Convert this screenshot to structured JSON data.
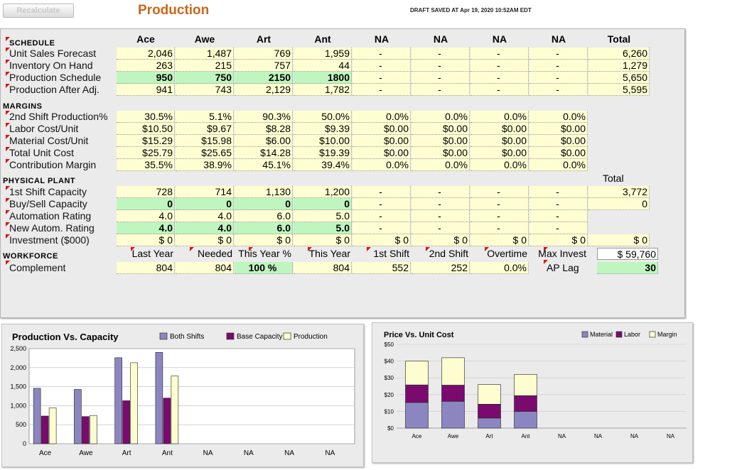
{
  "toolbar": {
    "recalc_label": "Recalculate",
    "title": "Production",
    "draft_status": "DRAFT SAVED AT Apr 19, 2020 10:52AM EDT"
  },
  "columns": [
    "Ace",
    "Awe",
    "Art",
    "Ant",
    "NA",
    "NA",
    "NA",
    "NA",
    "Total"
  ],
  "sections": {
    "schedule": "SCHEDULE",
    "margins": "MARGINS",
    "plant": "PHYSICAL PLANT",
    "workforce": "WORKFORCE"
  },
  "schedule": {
    "rows": [
      {
        "label": "Unit Sales Forecast",
        "values": [
          "2,046",
          "1,487",
          "769",
          "1,959",
          "-",
          "-",
          "-",
          "-",
          "6,260"
        ]
      },
      {
        "label": "Inventory On Hand",
        "values": [
          "263",
          "215",
          "757",
          "44",
          "-",
          "-",
          "-",
          "-",
          "1,279"
        ]
      },
      {
        "label": "Production Schedule",
        "values": [
          "950",
          "750",
          "2150",
          "1800",
          "-",
          "-",
          "-",
          "-",
          "5,650"
        ]
      },
      {
        "label": "Production After Adj.",
        "values": [
          "941",
          "743",
          "2,129",
          "1,782",
          "-",
          "-",
          "-",
          "-",
          "5,595"
        ]
      }
    ]
  },
  "margins": {
    "rows": [
      {
        "label": "2nd Shift Production%",
        "values": [
          "30.5%",
          "5.1%",
          "90.3%",
          "50.0%",
          "0.0%",
          "0.0%",
          "0.0%",
          "0.0%"
        ]
      },
      {
        "label": "Labor Cost/Unit",
        "values": [
          "$10.50",
          "$9.67",
          "$8.28",
          "$9.39",
          "$0.00",
          "$0.00",
          "$0.00",
          "$0.00"
        ]
      },
      {
        "label": "Material Cost/Unit",
        "values": [
          "$15.29",
          "$15.98",
          "$6.00",
          "$10.00",
          "$0.00",
          "$0.00",
          "$0.00",
          "$0.00"
        ]
      },
      {
        "label": "Total Unit Cost",
        "values": [
          "$25.79",
          "$25.65",
          "$14.28",
          "$19.39",
          "$0.00",
          "$0.00",
          "$0.00",
          "$0.00"
        ]
      },
      {
        "label": "Contribution Margin",
        "values": [
          "35.5%",
          "38.9%",
          "45.1%",
          "39.4%",
          "0.0%",
          "0.0%",
          "0.0%",
          "0.0%"
        ]
      }
    ]
  },
  "plant": {
    "total_header": "Total",
    "rows": [
      {
        "label": "1st Shift Capacity",
        "values": [
          "728",
          "714",
          "1,130",
          "1,200",
          "-",
          "-",
          "-",
          "-",
          "3,772"
        ]
      },
      {
        "label": "Buy/Sell Capacity",
        "values": [
          "0",
          "0",
          "0",
          "0",
          "-",
          "-",
          "-",
          "-",
          "0"
        ]
      },
      {
        "label": "Automation Rating",
        "values": [
          "4.0",
          "4.0",
          "6.0",
          "5.0",
          "-",
          "-",
          "-",
          "-"
        ]
      },
      {
        "label": "New Autom. Rating",
        "values": [
          "4.0",
          "4.0",
          "6.0",
          "5.0",
          "-",
          "-",
          "-",
          "-"
        ]
      },
      {
        "label": "Investment ($000)",
        "values": [
          "$ 0",
          "$ 0",
          "$ 0",
          "$ 0",
          "$ 0",
          "$ 0",
          "$ 0",
          "$ 0",
          "$ 0"
        ]
      }
    ]
  },
  "workforce": {
    "headers": [
      "Last Year",
      "Needed",
      "This Year %",
      "This Year",
      "1st Shift",
      "2nd Shift",
      "Overtime",
      "Max Invest"
    ],
    "max_invest_value": "$ 59,760",
    "label": "Complement",
    "values": [
      "804",
      "804",
      "100 %",
      "804",
      "552",
      "252",
      "0.0%"
    ],
    "ap_label": "AP Lag",
    "ap_value": "30"
  },
  "chart_data": [
    {
      "type": "bar",
      "title": "Production Vs. Capacity",
      "categories": [
        "Ace",
        "Awe",
        "Art",
        "Ant",
        "NA",
        "NA",
        "NA",
        "NA"
      ],
      "ylim": [
        0,
        2500
      ],
      "yticks": [
        "0",
        "500",
        "1,000",
        "1,500",
        "2,000",
        "2,500"
      ],
      "series": [
        {
          "name": "Both Shifts",
          "color": "#8c86c0",
          "values": [
            1456,
            1428,
            2260,
            2400,
            0,
            0,
            0,
            0
          ]
        },
        {
          "name": "Base Capacity",
          "color": "#7a0a6e",
          "values": [
            728,
            714,
            1130,
            1200,
            0,
            0,
            0,
            0
          ]
        },
        {
          "name": "Production",
          "color": "#fdfdcf",
          "values": [
            941,
            743,
            2129,
            1782,
            0,
            0,
            0,
            0
          ]
        }
      ]
    },
    {
      "type": "bar",
      "stacked": true,
      "title": "Price Vs. Unit Cost",
      "categories": [
        "Ace",
        "Awe",
        "Art",
        "Ant",
        "NA",
        "NA",
        "NA",
        "NA"
      ],
      "ylim": [
        0,
        50
      ],
      "yticks": [
        "$0",
        "$10",
        "$20",
        "$30",
        "$40",
        "$50"
      ],
      "series": [
        {
          "name": "Material",
          "color": "#8c86c0",
          "values": [
            15.29,
            15.98,
            6.0,
            10.0,
            0,
            0,
            0,
            0
          ]
        },
        {
          "name": "Labor",
          "color": "#7a0a6e",
          "values": [
            10.5,
            9.67,
            8.28,
            9.39,
            0,
            0,
            0,
            0
          ]
        },
        {
          "name": "Margin",
          "color": "#fdfdcf",
          "values": [
            14.21,
            16.35,
            11.72,
            12.61,
            0,
            0,
            0,
            0
          ]
        }
      ]
    }
  ]
}
